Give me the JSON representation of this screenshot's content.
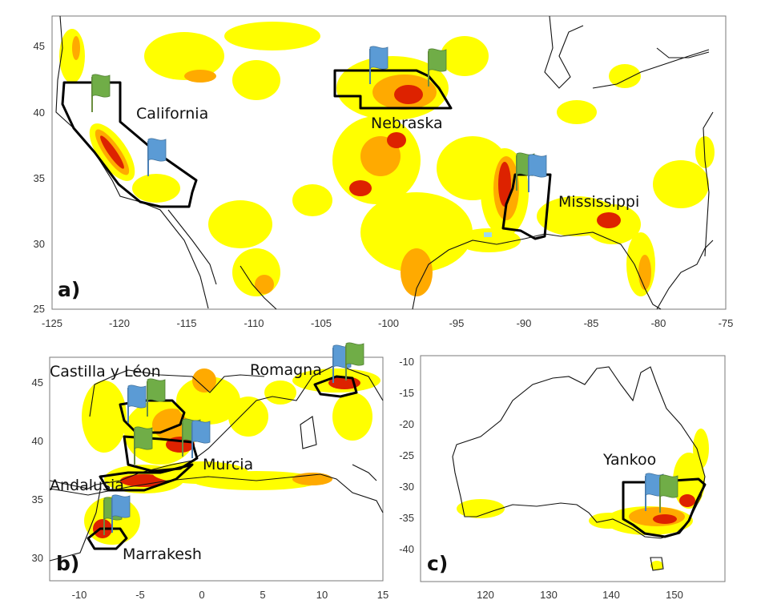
{
  "colors": {
    "low": "#ffff00",
    "mid": "#ffaa00",
    "high": "#dd2200",
    "flag_blue": "#5b9bd5",
    "flag_green": "#70ad47",
    "pole": "#4a7fb5",
    "boundary": "#000000"
  },
  "panels": {
    "a": {
      "letter": "a)",
      "x_ticks": [
        "-125",
        "-120",
        "-115",
        "-110",
        "-105",
        "-100",
        "-95",
        "-90",
        "-85",
        "-80",
        "-75"
      ],
      "y_ticks": [
        "45",
        "40",
        "35",
        "30",
        "25"
      ],
      "labels": {
        "california": "California",
        "nebraska": "Nebraska",
        "mississippi": "Mississippi"
      }
    },
    "b": {
      "letter": "b)",
      "x_ticks": [
        "-10",
        "-5",
        "0",
        "5",
        "10",
        "15"
      ],
      "y_ticks": [
        "45",
        "40",
        "35",
        "30"
      ],
      "labels": {
        "castilla": "Castilla y Léon",
        "romagna": "Romagna",
        "murcia": "Murcia",
        "andalusia": "Andalusia",
        "marrakesh": "Marrakesh"
      }
    },
    "c": {
      "letter": "c)",
      "x_ticks": [
        "120",
        "130",
        "140",
        "150"
      ],
      "y_ticks": [
        "-10",
        "-15",
        "-20",
        "-25",
        "-30",
        "-35",
        "-40"
      ],
      "labels": {
        "yankoo": "Yankoo"
      }
    }
  }
}
